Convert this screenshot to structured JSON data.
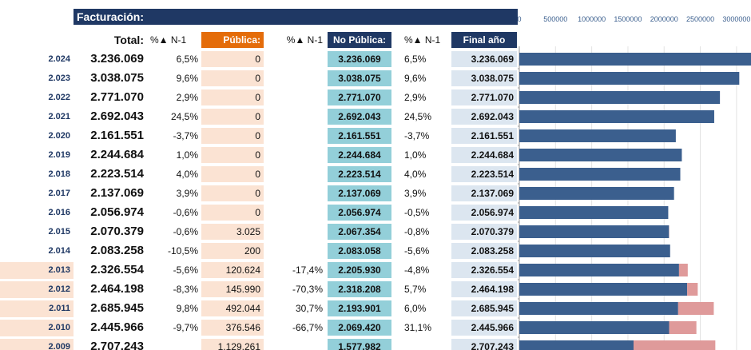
{
  "table": {
    "title": "Facturación:",
    "headers": [
      "Total:",
      "%▲ N-1",
      "Pública:",
      "%▲ N-1",
      "No Pública:",
      "%▲ N-1",
      "Final año"
    ],
    "rows": [
      [
        "2.024",
        "3.236.069",
        "6,5%",
        "0",
        null,
        "3.236.069",
        "6,5%",
        "3.236.069"
      ],
      [
        "2.023",
        "3.038.075",
        "9,6%",
        "0",
        null,
        "3.038.075",
        "9,6%",
        "3.038.075"
      ],
      [
        "2.022",
        "2.771.070",
        "2,9%",
        "0",
        null,
        "2.771.070",
        "2,9%",
        "2.771.070"
      ],
      [
        "2.021",
        "2.692.043",
        "24,5%",
        "0",
        null,
        "2.692.043",
        "24,5%",
        "2.692.043"
      ],
      [
        "2.020",
        "2.161.551",
        "-3,7%",
        "0",
        null,
        "2.161.551",
        "-3,7%",
        "2.161.551"
      ],
      [
        "2.019",
        "2.244.684",
        "1,0%",
        "0",
        null,
        "2.244.684",
        "1,0%",
        "2.244.684"
      ],
      [
        "2.018",
        "2.223.514",
        "4,0%",
        "0",
        null,
        "2.223.514",
        "4,0%",
        "2.223.514"
      ],
      [
        "2.017",
        "2.137.069",
        "3,9%",
        "0",
        null,
        "2.137.069",
        "3,9%",
        "2.137.069"
      ],
      [
        "2.016",
        "2.056.974",
        "-0,6%",
        "0",
        null,
        "2.056.974",
        "-0,5%",
        "2.056.974"
      ],
      [
        "2.015",
        "2.070.379",
        "-0,6%",
        "3.025",
        null,
        "2.067.354",
        "-0,8%",
        "2.070.379"
      ],
      [
        "2.014",
        "2.083.258",
        "-10,5%",
        "200",
        null,
        "2.083.058",
        "-5,6%",
        "2.083.258"
      ],
      [
        "2.013",
        "2.326.554",
        "-5,6%",
        "120.624",
        "-17,4%",
        "2.205.930",
        "-4,8%",
        "2.326.554"
      ],
      [
        "2.012",
        "2.464.198",
        "-8,3%",
        "145.990",
        "-70,3%",
        "2.318.208",
        "5,7%",
        "2.464.198"
      ],
      [
        "2.011",
        "2.685.945",
        "9,8%",
        "492.044",
        "30,7%",
        "2.193.901",
        "6,0%",
        "2.685.945"
      ],
      [
        "2.010",
        "2.445.966",
        "-9,7%",
        "376.546",
        "-66,7%",
        "2.069.420",
        "31,1%",
        "2.445.966"
      ],
      [
        "2.009",
        "2.707.243",
        null,
        "1.129.261",
        null,
        "1.577.982",
        null,
        "2.707.243"
      ]
    ]
  },
  "chart_data": {
    "type": "bar",
    "orientation": "horizontal",
    "stacked": true,
    "grid": true,
    "series": [
      {
        "color": "#3b5f8e",
        "values": [
          3236069,
          3038075,
          2771070,
          2692043,
          2161551,
          2244684,
          2223514,
          2137069,
          2056974,
          2067354,
          2083058,
          2205930,
          2318208,
          2193901,
          2069420,
          1577982
        ]
      },
      {
        "color": "#df9a9a",
        "values": [
          0,
          0,
          0,
          0,
          0,
          0,
          0,
          0,
          0,
          3025,
          200,
          120624,
          145990,
          492044,
          376546,
          1129261
        ]
      }
    ],
    "xlim": [
      0,
      3200000
    ],
    "xticks": [
      0,
      500000,
      1000000,
      1500000,
      2000000,
      2500000,
      3000000
    ]
  }
}
